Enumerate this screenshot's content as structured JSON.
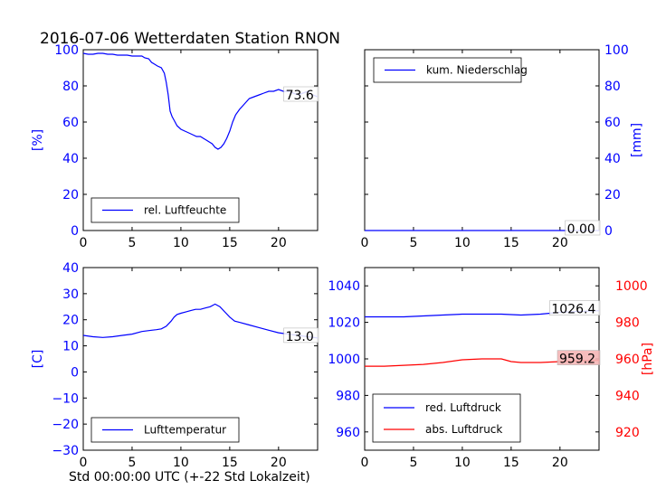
{
  "title": "2016-07-06 Wetterdaten Station RNON",
  "xlabel": "Std 00:00:00 UTC (+-22 Std Lokalzeit)",
  "colors": {
    "blue": "#0000ff",
    "red": "#ff0000",
    "black": "#000000",
    "label_box_red": "#f4b6b6"
  },
  "chart_data": [
    {
      "type": "line",
      "panel": "top-left",
      "ylabel": "[%]",
      "ylabel_side": "left",
      "xlim": [
        0,
        24
      ],
      "ylim": [
        0,
        100
      ],
      "xticks": [
        "0",
        "5",
        "10",
        "15",
        "20"
      ],
      "yticks": [
        "0",
        "20",
        "40",
        "60",
        "80",
        "100"
      ],
      "legend_location": "lower-left",
      "series": [
        {
          "name": "rel. Luftfeuchte",
          "color": "#0000ff",
          "x": [
            0,
            0.5,
            1,
            1.5,
            2,
            2.5,
            3,
            3.5,
            4,
            4.5,
            5,
            5.5,
            6,
            6.3,
            6.7,
            7,
            7.3,
            7.6,
            8,
            8.3,
            8.5,
            8.7,
            8.9,
            9.1,
            9.3,
            9.6,
            10,
            10.4,
            10.8,
            11.2,
            11.6,
            12,
            12.3,
            12.6,
            12.9,
            13.2,
            13.5,
            13.8,
            14.1,
            14.4,
            14.7,
            15,
            15.3,
            15.6,
            16,
            16.5,
            17,
            17.5,
            18,
            18.5,
            19,
            19.5,
            20,
            20.5,
            21,
            21.5,
            22,
            22.5,
            23,
            23.5,
            24
          ],
          "y": [
            98,
            97.5,
            97.5,
            98,
            98,
            97.5,
            97.5,
            97,
            97,
            97,
            96.5,
            96.5,
            96.5,
            95.5,
            95,
            93,
            92,
            91,
            90,
            87,
            82,
            75,
            66,
            63,
            61,
            58,
            56,
            55,
            54,
            53,
            52,
            52,
            51,
            50,
            49,
            48,
            46,
            45,
            46,
            48,
            51,
            55,
            60,
            64,
            67,
            70,
            73,
            74,
            75,
            76,
            77,
            77,
            78,
            77,
            77,
            76,
            75,
            76,
            77,
            75,
            74
          ]
        }
      ],
      "annotation": "73.6"
    },
    {
      "type": "line",
      "panel": "top-right",
      "ylabel": "[mm]",
      "ylabel_side": "right",
      "xlim": [
        0,
        24
      ],
      "ylim": [
        0,
        100
      ],
      "xticks": [
        "0",
        "5",
        "10",
        "15",
        "20"
      ],
      "yticks": [
        "0",
        "20",
        "40",
        "60",
        "80",
        "100"
      ],
      "legend_location": "upper-left",
      "series": [
        {
          "name": "kum. Niederschlag",
          "color": "#0000ff",
          "x": [
            0,
            24
          ],
          "y": [
            0,
            0
          ]
        }
      ],
      "annotation": "0.00"
    },
    {
      "type": "line",
      "panel": "bottom-left",
      "ylabel": "[C]",
      "ylabel_side": "left",
      "xlim": [
        0,
        24
      ],
      "ylim": [
        -30,
        40
      ],
      "xticks": [
        "0",
        "5",
        "10",
        "15",
        "20"
      ],
      "yticks": [
        "−30",
        "−20",
        "−10",
        "0",
        "10",
        "20",
        "30",
        "40"
      ],
      "legend_location": "lower-left",
      "series": [
        {
          "name": "Lufttemperatur",
          "color": "#0000ff",
          "x": [
            0,
            1,
            2,
            3,
            4,
            5,
            6,
            7,
            7.5,
            8,
            8.5,
            9,
            9.3,
            9.6,
            10,
            10.5,
            11,
            11.5,
            12,
            12.5,
            13,
            13.5,
            14,
            14.5,
            15,
            15.5,
            16,
            17,
            18,
            19,
            20,
            21,
            22,
            23,
            24
          ],
          "y": [
            14,
            13.5,
            13.2,
            13.5,
            14,
            14.5,
            15.5,
            16,
            16.2,
            16.5,
            17.5,
            19.5,
            21,
            22,
            22.5,
            23,
            23.5,
            24,
            24,
            24.5,
            25,
            26,
            25,
            23,
            21,
            19.5,
            19,
            18,
            17,
            16,
            15,
            14.5,
            14,
            13.5,
            13
          ]
        }
      ],
      "annotation": "13.0"
    },
    {
      "type": "line",
      "panel": "bottom-right",
      "ylabel": "[hPa]",
      "ylabel_side": "right",
      "xlim": [
        0,
        24
      ],
      "ylim_left": [
        950,
        1050
      ],
      "ylim_right": [
        910,
        1010
      ],
      "xticks": [
        "0",
        "5",
        "10",
        "15",
        "20"
      ],
      "yticks_left": [
        "960",
        "980",
        "1000",
        "1020",
        "1040"
      ],
      "yticks_right": [
        "920",
        "940",
        "960",
        "980",
        "1000"
      ],
      "legend_location": "lower-left",
      "series": [
        {
          "name": "red. Luftdruck",
          "color": "#0000ff",
          "axis": "left",
          "x": [
            0,
            2,
            4,
            6,
            8,
            10,
            12,
            14,
            16,
            18,
            20,
            22,
            24
          ],
          "y": [
            1023,
            1023,
            1023,
            1023.5,
            1024,
            1024.5,
            1024.5,
            1024.5,
            1024,
            1024.5,
            1025.5,
            1026,
            1026.4
          ]
        },
        {
          "name": "abs. Luftdruck",
          "color": "#ff0000",
          "axis": "right",
          "x": [
            0,
            2,
            4,
            6,
            8,
            10,
            12,
            13,
            14,
            15,
            16,
            18,
            20,
            22,
            24
          ],
          "y": [
            956,
            956,
            956.5,
            957,
            958,
            959.5,
            960,
            960,
            960,
            958.5,
            958,
            958,
            958.5,
            959,
            959.2
          ]
        }
      ],
      "annotations": [
        "1026.4",
        "959.2"
      ]
    }
  ]
}
